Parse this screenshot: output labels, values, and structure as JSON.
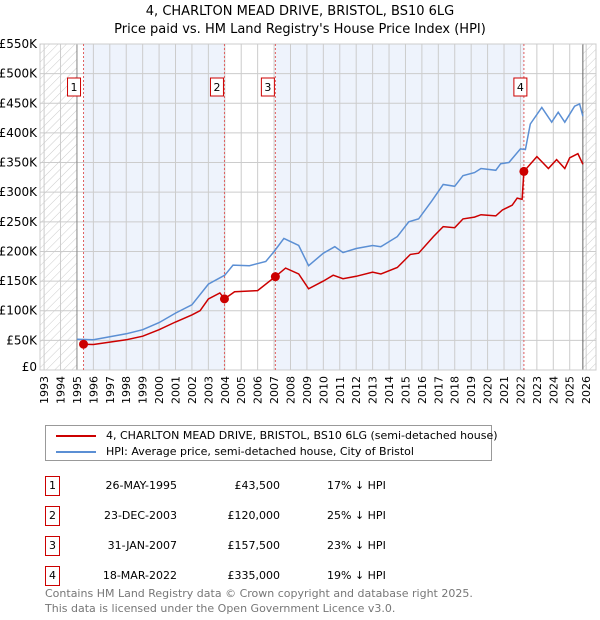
{
  "chart_data": {
    "type": "line",
    "title": "4, CHARLTON MEAD DRIVE, BRISTOL, BS10 6LG",
    "subtitle": "Price paid vs. HM Land Registry's House Price Index (HPI)",
    "xlim": [
      1992.75,
      2026.6
    ],
    "ylim": [
      0,
      550000
    ],
    "yticks": [
      0,
      50000,
      100000,
      150000,
      200000,
      250000,
      300000,
      350000,
      400000,
      450000,
      500000,
      550000
    ],
    "ytick_labels": [
      "£0",
      "£50K",
      "£100K",
      "£150K",
      "£200K",
      "£250K",
      "£300K",
      "£350K",
      "£400K",
      "£450K",
      "£500K",
      "£550K"
    ],
    "xticks": [
      1993,
      1994,
      1995,
      1996,
      1997,
      1998,
      1999,
      2000,
      2001,
      2002,
      2003,
      2004,
      2005,
      2006,
      2007,
      2008,
      2009,
      2010,
      2011,
      2012,
      2013,
      2014,
      2015,
      2016,
      2017,
      2018,
      2019,
      2020,
      2021,
      2022,
      2023,
      2024,
      2025,
      2026
    ],
    "grid": true,
    "colors": {
      "property": "#cc0000",
      "hpi": "#5b8fd4",
      "shade": "#eef3fc"
    },
    "series": [
      {
        "name": "4, CHARLTON MEAD DRIVE, BRISTOL, BS10 6LG (semi-detached house)",
        "points": [
          [
            1995.4,
            43500
          ],
          [
            1996,
            43000
          ],
          [
            1997,
            47000
          ],
          [
            1998,
            51000
          ],
          [
            1999,
            57000
          ],
          [
            2000,
            68000
          ],
          [
            2001,
            81000
          ],
          [
            2002,
            93000
          ],
          [
            2002.5,
            100000
          ],
          [
            2003,
            120000
          ],
          [
            2003.7,
            130000
          ],
          [
            2003.98,
            120000
          ],
          [
            2004.6,
            132000
          ],
          [
            2006,
            134000
          ],
          [
            2007.08,
            157500
          ],
          [
            2007.7,
            172000
          ],
          [
            2008.5,
            162000
          ],
          [
            2009.1,
            137000
          ],
          [
            2010,
            150000
          ],
          [
            2010.6,
            160000
          ],
          [
            2011.2,
            154000
          ],
          [
            2012,
            158000
          ],
          [
            2013,
            165000
          ],
          [
            2013.5,
            162000
          ],
          [
            2014.5,
            173000
          ],
          [
            2015.3,
            195000
          ],
          [
            2015.8,
            197000
          ],
          [
            2016.7,
            225000
          ],
          [
            2017.3,
            242000
          ],
          [
            2018,
            240000
          ],
          [
            2018.5,
            255000
          ],
          [
            2019.2,
            258000
          ],
          [
            2019.6,
            262000
          ],
          [
            2020.5,
            260000
          ],
          [
            2020.9,
            270000
          ],
          [
            2021.5,
            278000
          ],
          [
            2021.8,
            290000
          ],
          [
            2022.1,
            288000
          ],
          [
            2022.21,
            335000
          ],
          [
            2023,
            360000
          ],
          [
            2023.7,
            340000
          ],
          [
            2024.2,
            355000
          ],
          [
            2024.7,
            340000
          ],
          [
            2025.0,
            358000
          ],
          [
            2025.5,
            365000
          ],
          [
            2025.8,
            347000
          ]
        ]
      },
      {
        "name": "HPI: Average price, semi-detached house, City of Bristol",
        "points": [
          [
            1995,
            52000
          ],
          [
            1996,
            51000
          ],
          [
            1997,
            56000
          ],
          [
            1998,
            61000
          ],
          [
            1999,
            68000
          ],
          [
            2000,
            80000
          ],
          [
            2001,
            96000
          ],
          [
            2002,
            110000
          ],
          [
            2003,
            145000
          ],
          [
            2004,
            160000
          ],
          [
            2004.5,
            177000
          ],
          [
            2005.5,
            176000
          ],
          [
            2006.5,
            183000
          ],
          [
            2007,
            200000
          ],
          [
            2007.6,
            222000
          ],
          [
            2008.5,
            210000
          ],
          [
            2009.1,
            176000
          ],
          [
            2010,
            197000
          ],
          [
            2010.7,
            208000
          ],
          [
            2011.2,
            198000
          ],
          [
            2012,
            205000
          ],
          [
            2013,
            210000
          ],
          [
            2013.5,
            208000
          ],
          [
            2014.5,
            225000
          ],
          [
            2015.2,
            250000
          ],
          [
            2015.8,
            255000
          ],
          [
            2016.6,
            285000
          ],
          [
            2017.3,
            313000
          ],
          [
            2018,
            310000
          ],
          [
            2018.5,
            328000
          ],
          [
            2019.2,
            333000
          ],
          [
            2019.6,
            340000
          ],
          [
            2020.5,
            337000
          ],
          [
            2020.8,
            348000
          ],
          [
            2021.3,
            350000
          ],
          [
            2022,
            373000
          ],
          [
            2022.0,
            373000
          ],
          [
            2022.3,
            372000
          ],
          [
            2022.6,
            415000
          ],
          [
            2023.3,
            443000
          ],
          [
            2023.9,
            418000
          ],
          [
            2024.3,
            435000
          ],
          [
            2024.7,
            418000
          ],
          [
            2025.3,
            445000
          ],
          [
            2025.6,
            449000
          ],
          [
            2025.8,
            428000
          ]
        ]
      }
    ],
    "sales": [
      {
        "label": "1",
        "date": "26-MAY-1995",
        "price": "£43,500",
        "hpi": "17% ↓ HPI",
        "x": 1995.4,
        "y": 43500
      },
      {
        "label": "2",
        "date": "23-DEC-2003",
        "price": "£120,000",
        "hpi": "25% ↓ HPI",
        "x": 2003.98,
        "y": 120000
      },
      {
        "label": "3",
        "date": "31-JAN-2007",
        "price": "£157,500",
        "hpi": "23% ↓ HPI",
        "x": 2007.08,
        "y": 157500
      },
      {
        "label": "4",
        "date": "18-MAR-2022",
        "price": "£335,000",
        "hpi": "19% ↓ HPI",
        "x": 2022.21,
        "y": 335000
      }
    ]
  },
  "footer": {
    "line1": "Contains HM Land Registry data © Crown copyright and database right 2025.",
    "line2": "This data is licensed under the Open Government Licence v3.0."
  }
}
